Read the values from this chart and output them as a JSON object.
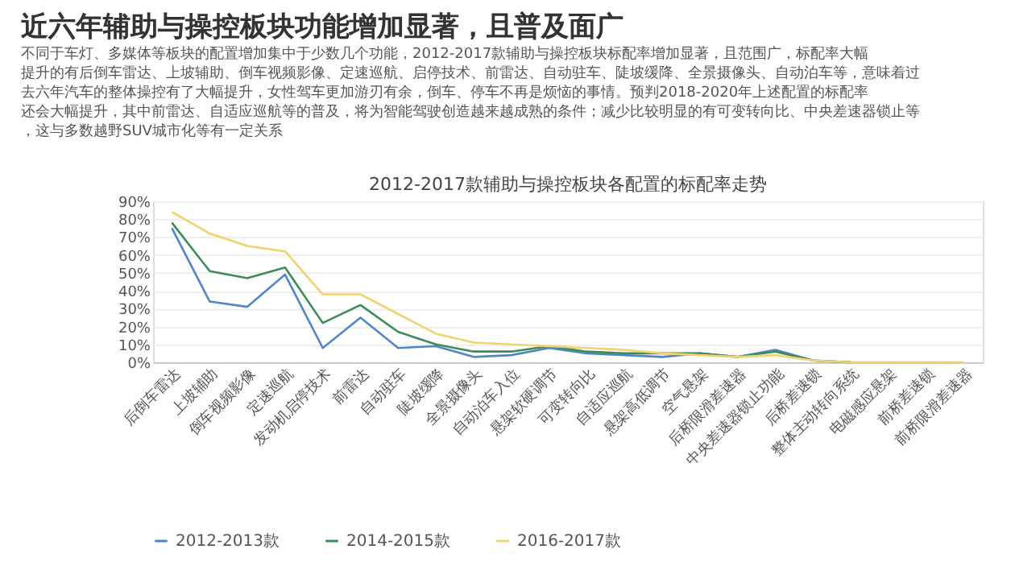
{
  "chart_data": {
    "type": "line",
    "title": "近六年辅助与操控板块功能增加显著，且普及面广",
    "subtitle": "不同于车灯、多媒体等板块的配置增加集中于少数几个功能，2012-2017款辅助与操控板块标配率增加显著，且范围广，标配率大幅提升的有后倒车雷达、上坡辅助、倒车视频影像、定速巡航、启停技术、前雷达、自动驻车、陡坡缓降、全景摄像头、自动泊车等，意味着过去六年汽车的整体操控有了大幅提升，女性驾车更加游刃有余，倒车、停车不再是烦恼的事情。预判2018-2020年上述配置的标配率还会大幅提升，其中前雷达、自适应巡航等的普及，将为智能驾驶创造越来越成熟的条件；减少比较明显的有可变转向比、中央差速器锁止等，这与多数越野SUV城市化等有一定关系",
    "annotations": [
      "2012-2017款辅助与操控板块各配置的标配率走势"
    ],
    "categories": [
      "后倒车雷达",
      "上坡辅助",
      "倒车视频影像",
      "定速巡航",
      "发动机启停技术",
      "前雷达",
      "自动驻车",
      "陡坡缓降",
      "全景摄像头",
      "自动泊车入位",
      "悬架软硬调节",
      "可变转向比",
      "自适应巡航",
      "悬架高低调节",
      "空气悬架",
      "后桥限滑差速器",
      "中央差速器锁止功能",
      "后桥差速锁",
      "整体主动转向系统",
      "电磁感应悬架",
      "前桥差速锁",
      "前桥限滑差速器"
    ],
    "series": [
      {
        "name": "2012-2013款",
        "color": "#4f86c6",
        "values": [
          75,
          34,
          31,
          49,
          8,
          25,
          8,
          9,
          3,
          4,
          8,
          5,
          4,
          3,
          5,
          3,
          7,
          1,
          0,
          null,
          null,
          null
        ]
      },
      {
        "name": "2014-2015款",
        "color": "#3d8b5a",
        "values": [
          78,
          51,
          47,
          53,
          22,
          32,
          17,
          10,
          6,
          6,
          9,
          6,
          5,
          5,
          5,
          3,
          6,
          1,
          0,
          null,
          null,
          null
        ]
      },
      {
        "name": "2016-2017款",
        "color": "#f0d36e",
        "values": [
          84,
          72,
          65,
          62,
          38,
          38,
          27,
          16,
          11,
          10,
          9,
          8,
          7,
          5,
          4,
          3,
          4,
          1,
          0,
          0,
          0,
          0
        ]
      }
    ],
    "ylim": [
      0,
      90
    ],
    "yticks": [
      {
        "value": 0,
        "label": "0%"
      },
      {
        "value": 10,
        "label": "10%"
      },
      {
        "value": 20,
        "label": "20%"
      },
      {
        "value": 30,
        "label": "30%"
      },
      {
        "value": 40,
        "label": "40%"
      },
      {
        "value": 50,
        "label": "50%"
      },
      {
        "value": 60,
        "label": "60%"
      },
      {
        "value": 70,
        "label": "70%"
      },
      {
        "value": 80,
        "label": "80%"
      },
      {
        "value": 90,
        "label": "90%"
      }
    ],
    "grid": "y",
    "legend": "bottom",
    "marker": "none",
    "line_style": "solid"
  }
}
